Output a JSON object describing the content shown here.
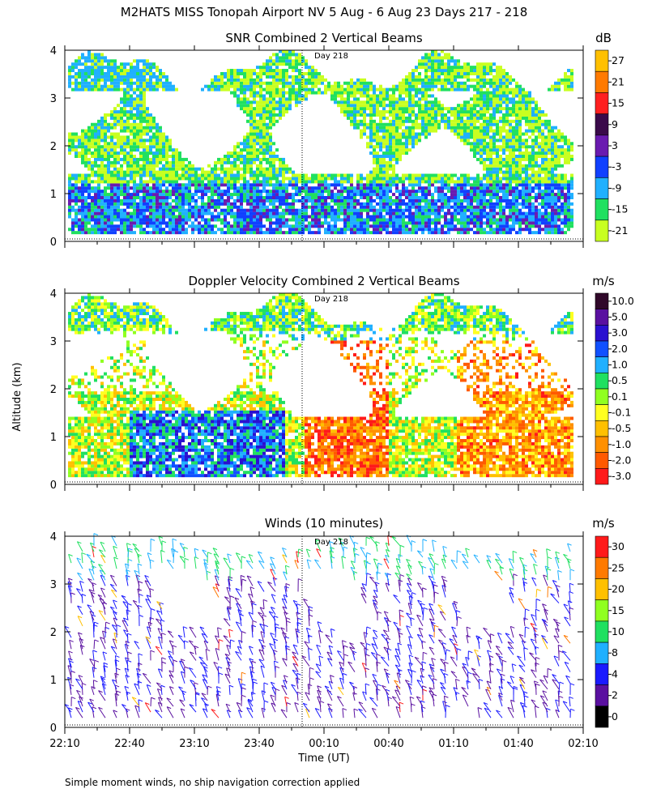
{
  "figure": {
    "title": "M2HATS MISS Tonopah Airport NV   5 Aug -  6 Aug 23 Days 217 - 218",
    "ylabel": "Altitude (km)",
    "xlabel": "Time (UT)",
    "footnote": "Simple moment winds, no ship navigation correction applied",
    "day_marker": "Day 218"
  },
  "chart_data": [
    {
      "type": "heatmap",
      "title": "SNR Combined 2 Vertical Beams",
      "units": "dB",
      "x_ticks": [
        "22:10",
        "22:40",
        "23:10",
        "23:40",
        "00:10",
        "00:40",
        "01:10",
        "01:40",
        "02:10"
      ],
      "y_ticks": [
        "0",
        "1",
        "2",
        "3",
        "4"
      ],
      "ylim": [
        0,
        4
      ],
      "colorbar": {
        "labels": [
          "27",
          "21",
          "15",
          "9",
          "3",
          "-3",
          "-9",
          "-15",
          "-21"
        ],
        "colors": [
          "#ffc000",
          "#ff7a00",
          "#ff2020",
          "#3a0a4a",
          "#6a1ab0",
          "#1040ff",
          "#20b0ff",
          "#20e060",
          "#c8ff20"
        ]
      }
    },
    {
      "type": "heatmap",
      "title": "Doppler Velocity Combined 2 Vertical Beams",
      "units": "m/s",
      "x_ticks": [
        "22:10",
        "22:40",
        "23:10",
        "23:40",
        "00:10",
        "00:40",
        "01:10",
        "01:40",
        "02:10"
      ],
      "y_ticks": [
        "0",
        "1",
        "2",
        "3",
        "4"
      ],
      "ylim": [
        0,
        4
      ],
      "colorbar": {
        "labels": [
          "10.0",
          "5.0",
          "3.0",
          "2.0",
          "1.0",
          "0.5",
          "0.1",
          "-0.1",
          "-0.5",
          "-1.0",
          "-2.0",
          "-3.0"
        ],
        "colors": [
          "#30082a",
          "#5a10a0",
          "#2a10d0",
          "#1050ff",
          "#20b0ff",
          "#20e060",
          "#90ff20",
          "#ffff20",
          "#ffc000",
          "#ff9000",
          "#ff5a00",
          "#ff1a1a"
        ]
      }
    },
    {
      "type": "scatter",
      "title": "Winds (10 minutes)",
      "units": "m/s",
      "x_ticks": [
        "22:10",
        "22:40",
        "23:10",
        "23:40",
        "00:10",
        "00:40",
        "01:10",
        "01:40",
        "02:10"
      ],
      "y_ticks": [
        "0",
        "1",
        "2",
        "3",
        "4"
      ],
      "ylim": [
        0,
        4
      ],
      "colorbar": {
        "labels": [
          "30",
          "25",
          "20",
          "15",
          "10",
          "8",
          "4",
          "2",
          "0"
        ],
        "colors": [
          "#ff1a1a",
          "#ff7a00",
          "#ffc000",
          "#90ff20",
          "#20e060",
          "#20b0ff",
          "#1a1aff",
          "#5a10a0",
          "#000000"
        ]
      }
    }
  ]
}
